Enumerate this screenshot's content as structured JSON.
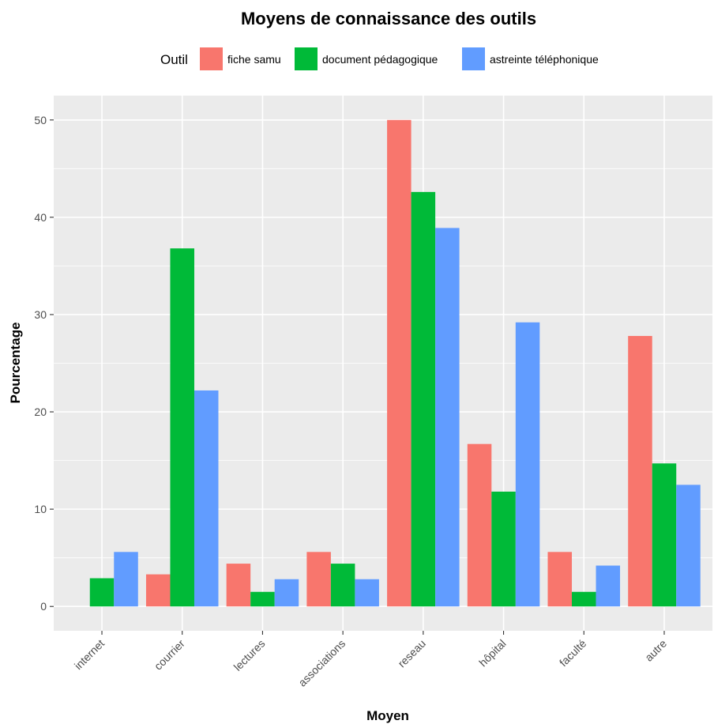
{
  "chart_data": {
    "type": "bar",
    "title": "Moyens de connaissance des outils",
    "xlabel": "Moyen",
    "ylabel": "Pourcentage",
    "legend_title": "Outil",
    "legend_position": "top",
    "grid": true,
    "ylim": [
      -2.5,
      52.5
    ],
    "y_ticks": [
      0,
      10,
      20,
      30,
      40,
      50
    ],
    "categories": [
      "internet",
      "courrier",
      "lectures",
      "associations",
      "reseau",
      "hôpital",
      "faculté",
      "autre"
    ],
    "series": [
      {
        "name": "fiche samu",
        "color": "#F8766D",
        "values": [
          0,
          3.3,
          4.4,
          5.6,
          50.0,
          16.7,
          5.6,
          27.8
        ]
      },
      {
        "name": "document pédagogique",
        "color": "#00BA38",
        "values": [
          2.9,
          36.8,
          1.5,
          4.4,
          42.6,
          11.8,
          1.5,
          14.7
        ]
      },
      {
        "name": "astreinte téléphonique",
        "color": "#619CFF",
        "values": [
          5.6,
          22.2,
          2.8,
          2.8,
          38.9,
          29.2,
          4.2,
          12.5
        ]
      }
    ]
  }
}
